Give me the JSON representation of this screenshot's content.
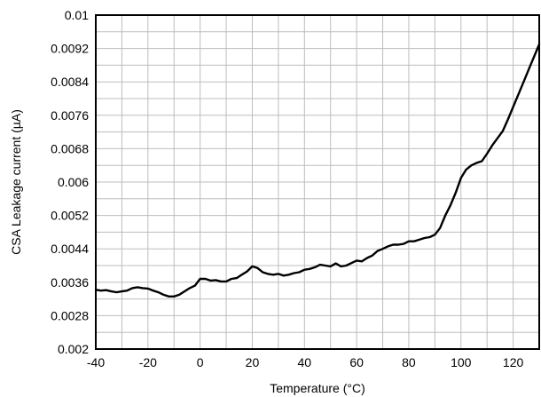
{
  "chart_data": {
    "type": "line",
    "title": "",
    "xlabel": "Temperature (°C)",
    "ylabel": "CSA Leakage current (µA)",
    "xlim": [
      -40,
      130
    ],
    "ylim": [
      0.002,
      0.01
    ],
    "grid": true,
    "x_ticks": [
      -40,
      -20,
      0,
      20,
      40,
      60,
      80,
      100,
      120
    ],
    "x_tick_labels": [
      "-40",
      "-20",
      "0",
      "20",
      "40",
      "60",
      "80",
      "100",
      "120"
    ],
    "x_minor_step": 10,
    "y_ticks": [
      0.002,
      0.0028,
      0.0036,
      0.0044,
      0.0052,
      0.006,
      0.0068,
      0.0076,
      0.0084,
      0.0092,
      0.01
    ],
    "y_tick_labels": [
      "0.002",
      "0.0028",
      "0.0036",
      "0.0044",
      "0.0052",
      "0.006",
      "0.0068",
      "0.0076",
      "0.0084",
      "0.0092",
      "0.01"
    ],
    "y_minor_step": 0.0004,
    "series": [
      {
        "color": "#000000",
        "x": [
          -40,
          -38,
          -36,
          -34,
          -32,
          -30,
          -28,
          -26,
          -24,
          -22,
          -20,
          -18,
          -16,
          -14,
          -12,
          -10,
          -8,
          -6,
          -4,
          -2,
          0,
          2,
          4,
          6,
          8,
          10,
          12,
          14,
          16,
          18,
          20,
          22,
          24,
          26,
          28,
          30,
          32,
          34,
          36,
          38,
          40,
          42,
          44,
          46,
          48,
          50,
          52,
          54,
          56,
          58,
          60,
          62,
          64,
          66,
          68,
          70,
          72,
          74,
          76,
          78,
          80,
          82,
          84,
          86,
          88,
          90,
          92,
          94,
          96,
          98,
          100,
          102,
          104,
          106,
          108,
          110,
          112,
          114,
          116,
          118,
          120,
          122,
          124,
          126,
          128,
          130
        ],
        "y": [
          0.00342,
          0.0034,
          0.00341,
          0.00338,
          0.00336,
          0.00338,
          0.0034,
          0.00346,
          0.00348,
          0.00346,
          0.00345,
          0.0034,
          0.00336,
          0.0033,
          0.00326,
          0.00326,
          0.0033,
          0.00338,
          0.00346,
          0.00352,
          0.00368,
          0.00368,
          0.00364,
          0.00365,
          0.00362,
          0.00362,
          0.00368,
          0.0037,
          0.00378,
          0.00386,
          0.00398,
          0.00394,
          0.00384,
          0.0038,
          0.00378,
          0.0038,
          0.00376,
          0.00378,
          0.00382,
          0.00384,
          0.0039,
          0.00392,
          0.00396,
          0.00402,
          0.004,
          0.00398,
          0.00405,
          0.00398,
          0.004,
          0.00406,
          0.00412,
          0.0041,
          0.00418,
          0.00424,
          0.00435,
          0.0044,
          0.00446,
          0.0045,
          0.0045,
          0.00452,
          0.00458,
          0.00458,
          0.00462,
          0.00466,
          0.00468,
          0.00474,
          0.0049,
          0.0052,
          0.00545,
          0.00575,
          0.0061,
          0.0063,
          0.0064,
          0.00646,
          0.0065,
          0.00668,
          0.00688,
          0.00705,
          0.00722,
          0.0075,
          0.0078,
          0.0081,
          0.0084,
          0.0087,
          0.009,
          0.0093
        ]
      }
    ]
  }
}
